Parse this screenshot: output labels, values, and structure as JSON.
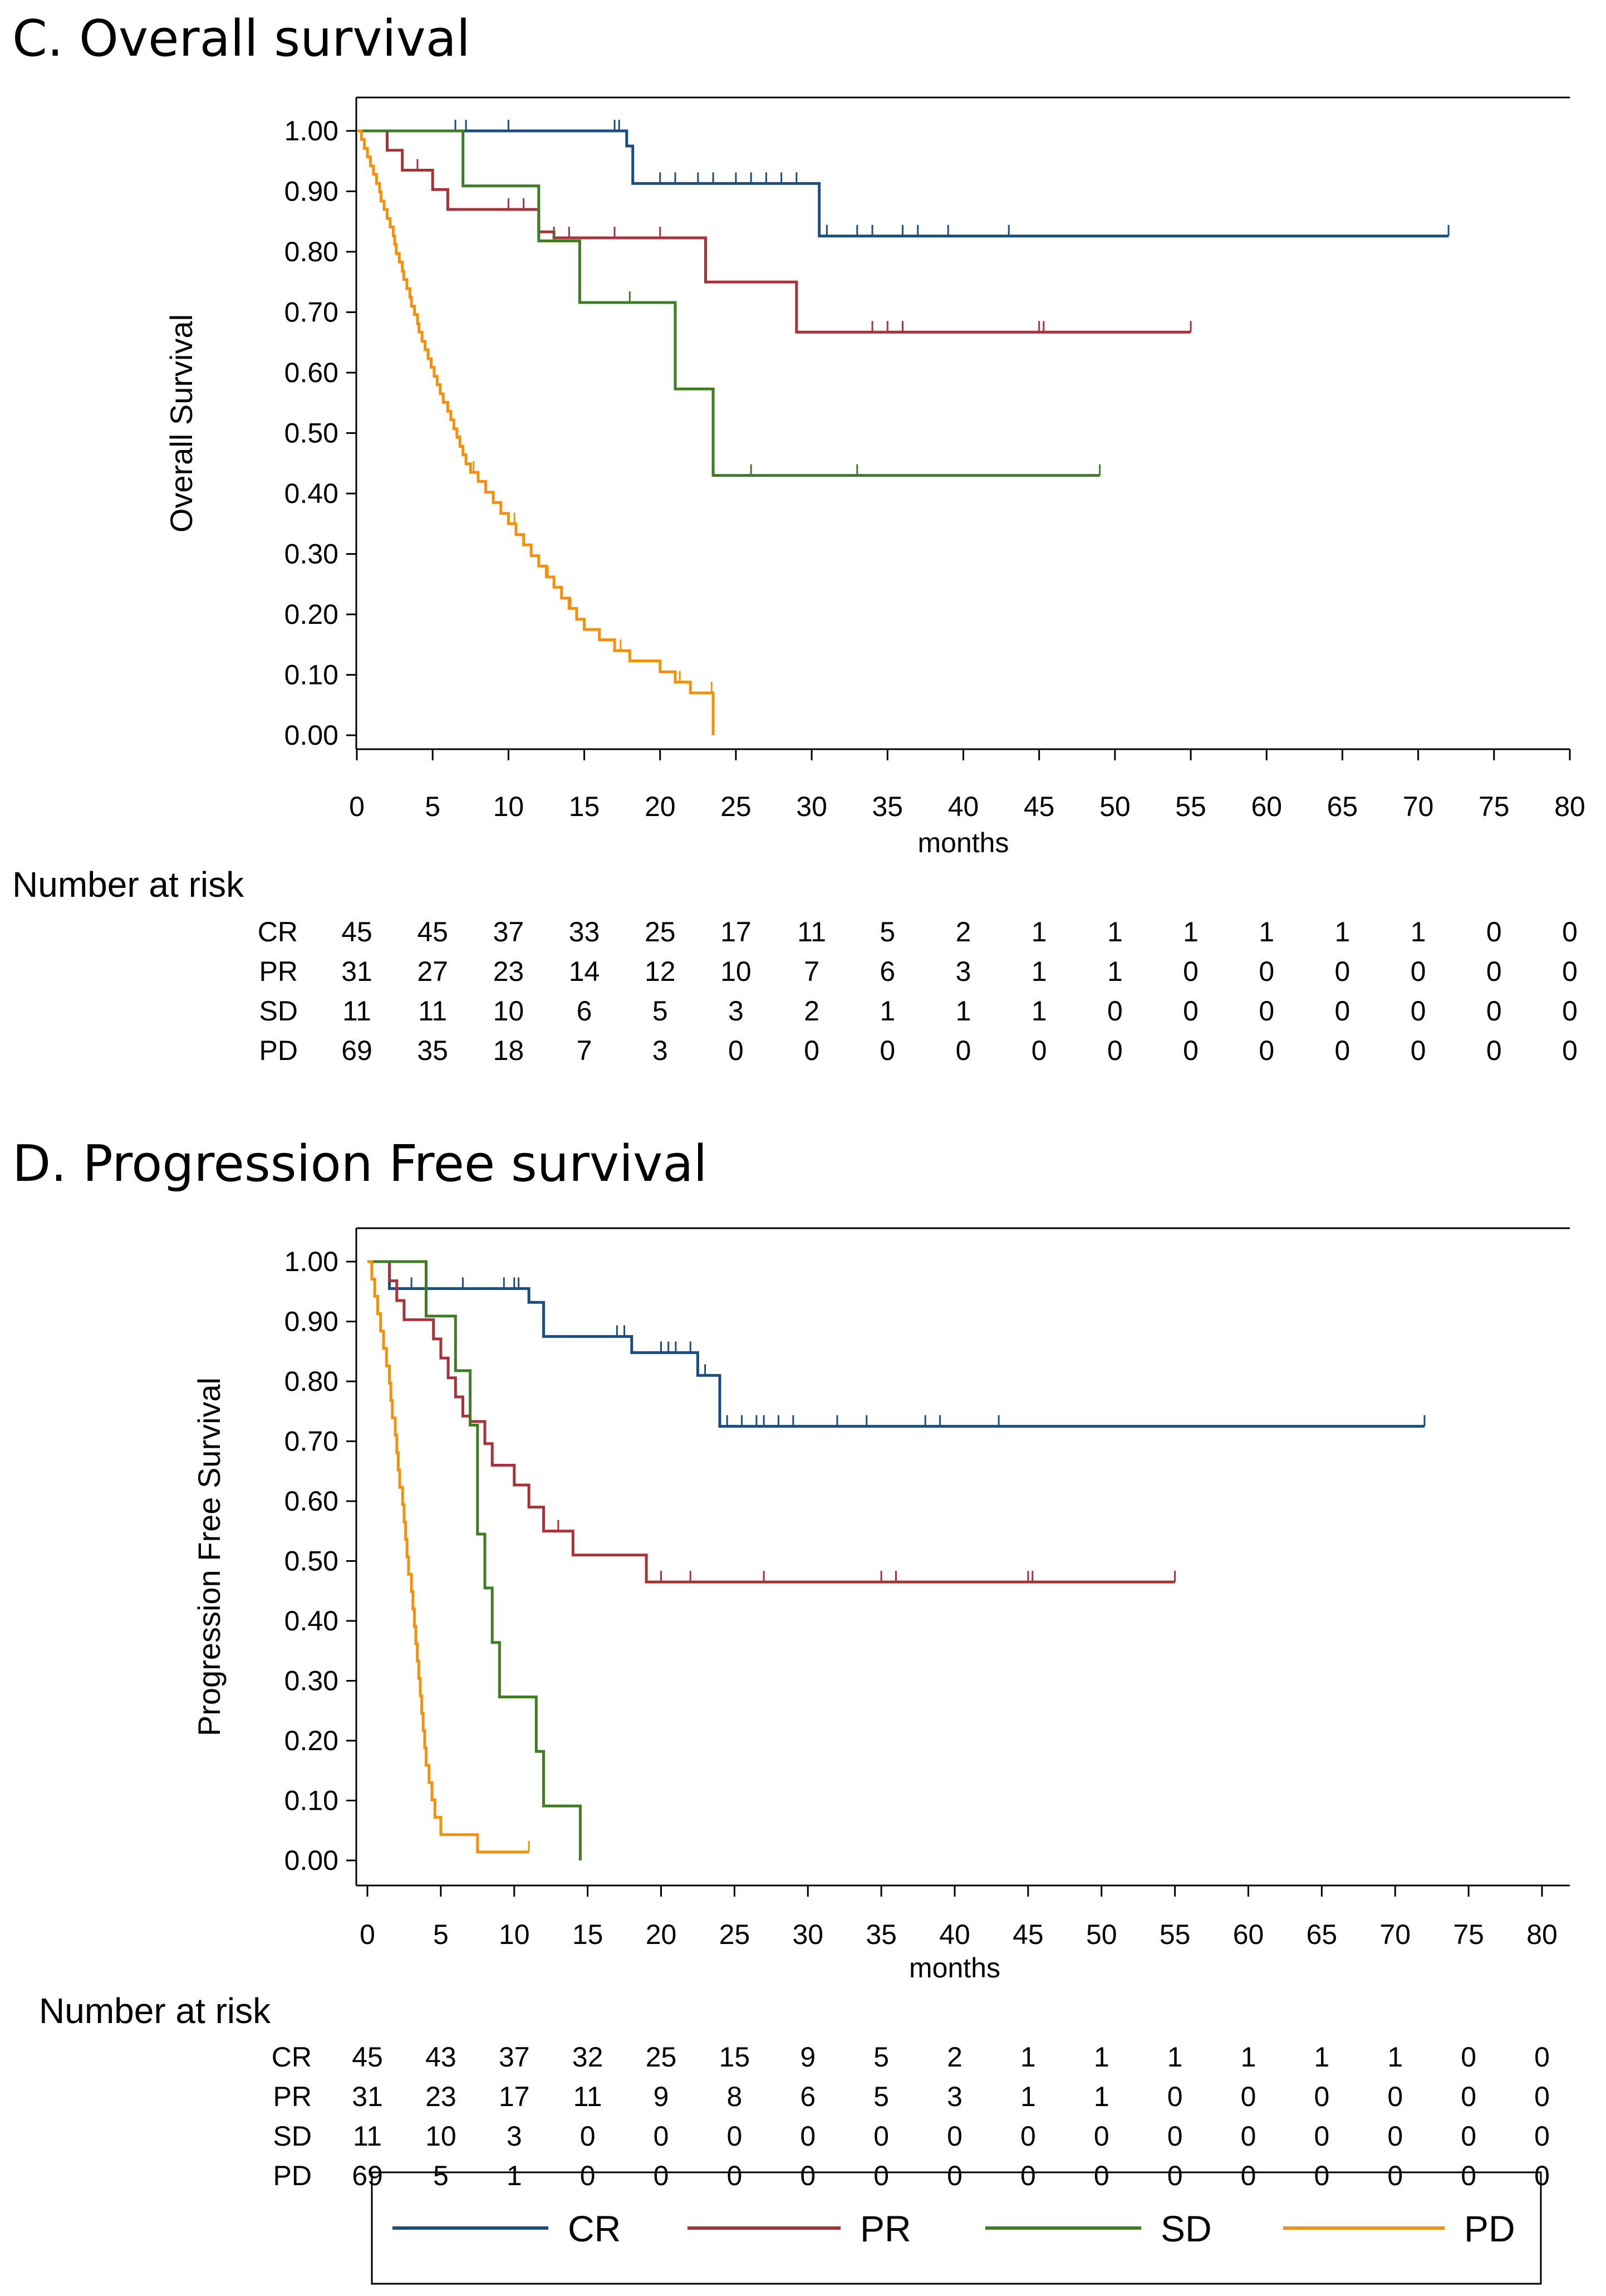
{
  "colors": {
    "CR": "#1a4e7f",
    "PR": "#a8323a",
    "SD": "#3e7d23",
    "PD": "#f5900c"
  },
  "legend": [
    {
      "key": "CR",
      "label": "CR"
    },
    {
      "key": "PR",
      "label": "PR"
    },
    {
      "key": "SD",
      "label": "SD"
    },
    {
      "key": "PD",
      "label": "PD"
    }
  ],
  "chart_data": [
    {
      "type": "line",
      "step": true,
      "title": "C. Overall survival",
      "xlabel": "months",
      "ylabel": "Overall Survival",
      "xlim": [
        0,
        80
      ],
      "ylim": [
        0,
        1
      ],
      "xticks": [
        0,
        5,
        10,
        15,
        20,
        25,
        30,
        35,
        40,
        45,
        50,
        55,
        60,
        65,
        70,
        75,
        80
      ],
      "yticks": [
        "0.00",
        "0.10",
        "0.20",
        "0.30",
        "0.40",
        "0.50",
        "0.60",
        "0.70",
        "0.80",
        "0.90",
        "1.00"
      ],
      "series": [
        {
          "name": "CR",
          "steps": [
            [
              0,
              1.0
            ],
            [
              17.8,
              0.975
            ],
            [
              18.2,
              0.913
            ],
            [
              30.5,
              0.826
            ],
            [
              72,
              0.826
            ]
          ],
          "censor": [
            6.5,
            7.2,
            10,
            17,
            17.3,
            20,
            21,
            22.5,
            23.5,
            25,
            26,
            27,
            28,
            29,
            31,
            33,
            34,
            36,
            37,
            39,
            43,
            72
          ]
        },
        {
          "name": "PR",
          "steps": [
            [
              0,
              1.0
            ],
            [
              2,
              0.968
            ],
            [
              3,
              0.935
            ],
            [
              5,
              0.903
            ],
            [
              6,
              0.87
            ],
            [
              12,
              0.833
            ],
            [
              13,
              0.823
            ],
            [
              23,
              0.75
            ],
            [
              29,
              0.667
            ],
            [
              55,
              0.667
            ]
          ],
          "censor": [
            4,
            10,
            11,
            13,
            14,
            17,
            20,
            34,
            35,
            36,
            45,
            45.3,
            55
          ]
        },
        {
          "name": "SD",
          "steps": [
            [
              0,
              1.0
            ],
            [
              7,
              0.909
            ],
            [
              12,
              0.818
            ],
            [
              14.7,
              0.716
            ],
            [
              21,
              0.573
            ],
            [
              23.5,
              0.43
            ],
            [
              49,
              0.43
            ]
          ],
          "censor": [
            13,
            18,
            26,
            33,
            49
          ]
        },
        {
          "name": "PD",
          "steps": [
            [
              0,
              1.0
            ],
            [
              0.3,
              0.986
            ],
            [
              0.5,
              0.971
            ],
            [
              0.7,
              0.957
            ],
            [
              0.9,
              0.942
            ],
            [
              1.1,
              0.928
            ],
            [
              1.3,
              0.913
            ],
            [
              1.5,
              0.899
            ],
            [
              1.6,
              0.884
            ],
            [
              1.8,
              0.87
            ],
            [
              2.0,
              0.855
            ],
            [
              2.2,
              0.841
            ],
            [
              2.4,
              0.826
            ],
            [
              2.5,
              0.812
            ],
            [
              2.6,
              0.797
            ],
            [
              2.8,
              0.783
            ],
            [
              3.0,
              0.768
            ],
            [
              3.1,
              0.754
            ],
            [
              3.3,
              0.739
            ],
            [
              3.5,
              0.725
            ],
            [
              3.6,
              0.71
            ],
            [
              3.8,
              0.696
            ],
            [
              4.0,
              0.681
            ],
            [
              4.1,
              0.667
            ],
            [
              4.3,
              0.652
            ],
            [
              4.5,
              0.638
            ],
            [
              4.7,
              0.623
            ],
            [
              4.9,
              0.609
            ],
            [
              5.1,
              0.594
            ],
            [
              5.3,
              0.58
            ],
            [
              5.5,
              0.565
            ],
            [
              5.7,
              0.551
            ],
            [
              6.0,
              0.536
            ],
            [
              6.2,
              0.522
            ],
            [
              6.4,
              0.507
            ],
            [
              6.6,
              0.493
            ],
            [
              6.8,
              0.478
            ],
            [
              7.0,
              0.464
            ],
            [
              7.2,
              0.449
            ],
            [
              7.5,
              0.435
            ],
            [
              8.0,
              0.42
            ],
            [
              8.5,
              0.402
            ],
            [
              9.0,
              0.385
            ],
            [
              9.5,
              0.367
            ],
            [
              10.0,
              0.35
            ],
            [
              10.5,
              0.332
            ],
            [
              11.0,
              0.315
            ],
            [
              11.5,
              0.297
            ],
            [
              12.0,
              0.28
            ],
            [
              12.5,
              0.262
            ],
            [
              13.0,
              0.245
            ],
            [
              13.5,
              0.227
            ],
            [
              14.0,
              0.21
            ],
            [
              14.5,
              0.192
            ],
            [
              15.0,
              0.175
            ],
            [
              16.0,
              0.158
            ],
            [
              17.0,
              0.14
            ],
            [
              18.0,
              0.123
            ],
            [
              20.0,
              0.105
            ],
            [
              21.0,
              0.088
            ],
            [
              22.0,
              0.07
            ],
            [
              23.5,
              0.0
            ]
          ],
          "censor": [
            6.8,
            7.7,
            10.4,
            12.6,
            14.1,
            17.4,
            21.3,
            23.4
          ]
        }
      ],
      "risk_table": {
        "title": "Number at risk",
        "rows": [
          {
            "label": "CR",
            "values": [
              "45",
              "45",
              "37",
              "33",
              "25",
              "17",
              "11",
              "5",
              "2",
              "1",
              "1",
              "1",
              "1",
              "1",
              "1",
              "0",
              "0"
            ]
          },
          {
            "label": "PR",
            "values": [
              "31",
              "27",
              "23",
              "14",
              "12",
              "10",
              "7",
              "6",
              "3",
              "1",
              "1",
              "0",
              "0",
              "0",
              "0",
              "0",
              "0"
            ]
          },
          {
            "label": "SD",
            "values": [
              "11",
              "11",
              "10",
              "6",
              "5",
              "3",
              "2",
              "1",
              "1",
              "1",
              "0",
              "0",
              "0",
              "0",
              "0",
              "0",
              "0"
            ]
          },
          {
            "label": "PD",
            "values": [
              "69",
              "35",
              "18",
              "7",
              "3",
              "0",
              "0",
              "0",
              "0",
              "0",
              "0",
              "0",
              "0",
              "0",
              "0",
              "0",
              "0"
            ]
          }
        ]
      }
    },
    {
      "type": "line",
      "step": true,
      "title": "D. Progression Free  survival",
      "xlabel": "months",
      "ylabel": "Progression Free Survival",
      "xlim": [
        0,
        80
      ],
      "ylim": [
        0,
        1
      ],
      "xticks": [
        0,
        5,
        10,
        15,
        20,
        25,
        30,
        35,
        40,
        45,
        50,
        55,
        60,
        65,
        70,
        75,
        80
      ],
      "yticks": [
        "0.00",
        "0.10",
        "0.20",
        "0.30",
        "0.40",
        "0.50",
        "0.60",
        "0.70",
        "0.80",
        "0.90",
        "1.00"
      ],
      "series": [
        {
          "name": "CR",
          "steps": [
            [
              0,
              1.0
            ],
            [
              1.5,
              0.955
            ],
            [
              11,
              0.932
            ],
            [
              12,
              0.875
            ],
            [
              18,
              0.848
            ],
            [
              22.5,
              0.81
            ],
            [
              24,
              0.725
            ],
            [
              72,
              0.725
            ]
          ],
          "censor": [
            3,
            6.5,
            9.3,
            10,
            10.3,
            17,
            17.5,
            20,
            20.5,
            21,
            22,
            23,
            24.5,
            25.5,
            26.5,
            27,
            28,
            29,
            32,
            34,
            38,
            39,
            43,
            72
          ]
        },
        {
          "name": "PR",
          "steps": [
            [
              0,
              1.0
            ],
            [
              1.5,
              0.968
            ],
            [
              2,
              0.935
            ],
            [
              2.5,
              0.903
            ],
            [
              4.5,
              0.871
            ],
            [
              5,
              0.839
            ],
            [
              5.5,
              0.806
            ],
            [
              6,
              0.774
            ],
            [
              6.5,
              0.742
            ],
            [
              7,
              0.733
            ],
            [
              8,
              0.696
            ],
            [
              8.5,
              0.66
            ],
            [
              10,
              0.627
            ],
            [
              11,
              0.59
            ],
            [
              12,
              0.55
            ],
            [
              14,
              0.51
            ],
            [
              19,
              0.465
            ],
            [
              55,
              0.465
            ]
          ],
          "censor": [
            13,
            14,
            20,
            22,
            27,
            35,
            36,
            45,
            45.3,
            55
          ]
        },
        {
          "name": "SD",
          "steps": [
            [
              0,
              1.0
            ],
            [
              4,
              0.909
            ],
            [
              6,
              0.818
            ],
            [
              7,
              0.727
            ],
            [
              7.5,
              0.545
            ],
            [
              8,
              0.455
            ],
            [
              8.5,
              0.364
            ],
            [
              9,
              0.273
            ],
            [
              11.5,
              0.182
            ],
            [
              12,
              0.091
            ],
            [
              14.5,
              0.0
            ]
          ],
          "censor": []
        },
        {
          "name": "PD",
          "steps": [
            [
              0,
              1.0
            ],
            [
              0.3,
              0.971
            ],
            [
              0.5,
              0.942
            ],
            [
              0.7,
              0.913
            ],
            [
              0.9,
              0.884
            ],
            [
              1.1,
              0.855
            ],
            [
              1.3,
              0.826
            ],
            [
              1.5,
              0.797
            ],
            [
              1.6,
              0.768
            ],
            [
              1.7,
              0.739
            ],
            [
              1.9,
              0.71
            ],
            [
              2.0,
              0.681
            ],
            [
              2.1,
              0.652
            ],
            [
              2.2,
              0.623
            ],
            [
              2.4,
              0.594
            ],
            [
              2.5,
              0.565
            ],
            [
              2.6,
              0.536
            ],
            [
              2.7,
              0.507
            ],
            [
              2.8,
              0.478
            ],
            [
              3.0,
              0.449
            ],
            [
              3.1,
              0.42
            ],
            [
              3.2,
              0.391
            ],
            [
              3.3,
              0.362
            ],
            [
              3.4,
              0.333
            ],
            [
              3.5,
              0.304
            ],
            [
              3.6,
              0.275
            ],
            [
              3.7,
              0.246
            ],
            [
              3.8,
              0.217
            ],
            [
              3.9,
              0.188
            ],
            [
              4.0,
              0.159
            ],
            [
              4.2,
              0.13
            ],
            [
              4.4,
              0.101
            ],
            [
              4.6,
              0.072
            ],
            [
              5.0,
              0.043
            ],
            [
              7.5,
              0.014
            ],
            [
              11,
              0.014
            ]
          ],
          "censor": [
            11
          ]
        }
      ],
      "risk_table": {
        "title": "Number at risk",
        "rows": [
          {
            "label": "CR",
            "values": [
              "45",
              "43",
              "37",
              "32",
              "25",
              "15",
              "9",
              "5",
              "2",
              "1",
              "1",
              "1",
              "1",
              "1",
              "1",
              "0",
              "0"
            ]
          },
          {
            "label": "PR",
            "values": [
              "31",
              "23",
              "17",
              "11",
              "9",
              "8",
              "6",
              "5",
              "3",
              "1",
              "1",
              "0",
              "0",
              "0",
              "0",
              "0",
              "0"
            ]
          },
          {
            "label": "SD",
            "values": [
              "11",
              "10",
              "3",
              "0",
              "0",
              "0",
              "0",
              "0",
              "0",
              "0",
              "0",
              "0",
              "0",
              "0",
              "0",
              "0",
              "0"
            ]
          },
          {
            "label": "PD",
            "values": [
              "69",
              "5",
              "1",
              "0",
              "0",
              "0",
              "0",
              "0",
              "0",
              "0",
              "0",
              "0",
              "0",
              "0",
              "0",
              "0",
              "0"
            ]
          }
        ]
      }
    }
  ]
}
